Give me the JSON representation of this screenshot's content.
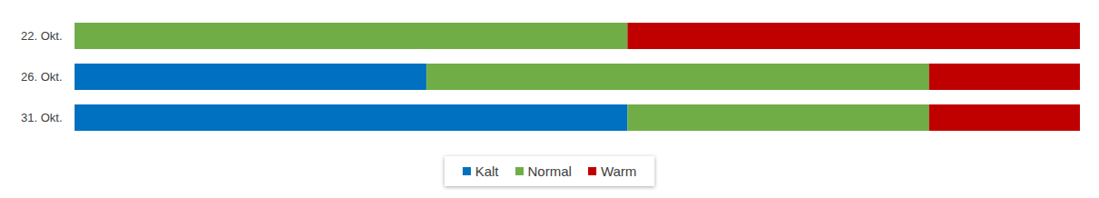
{
  "chart_data": {
    "type": "bar",
    "orientation": "horizontal",
    "stacked": true,
    "categories": [
      "22. Okt.",
      "26. Okt.",
      "31. Okt."
    ],
    "series": [
      {
        "name": "Kalt",
        "color": "#0070c0",
        "values": [
          0,
          35,
          55
        ]
      },
      {
        "name": "Normal",
        "color": "#70ad47",
        "values": [
          55,
          50,
          30
        ]
      },
      {
        "name": "Warm",
        "color": "#c00000",
        "values": [
          45,
          15,
          15
        ]
      }
    ],
    "xlim": [
      0,
      100
    ],
    "xticks": [],
    "tick_labels": "y",
    "grid": false,
    "legend": "bottom"
  }
}
